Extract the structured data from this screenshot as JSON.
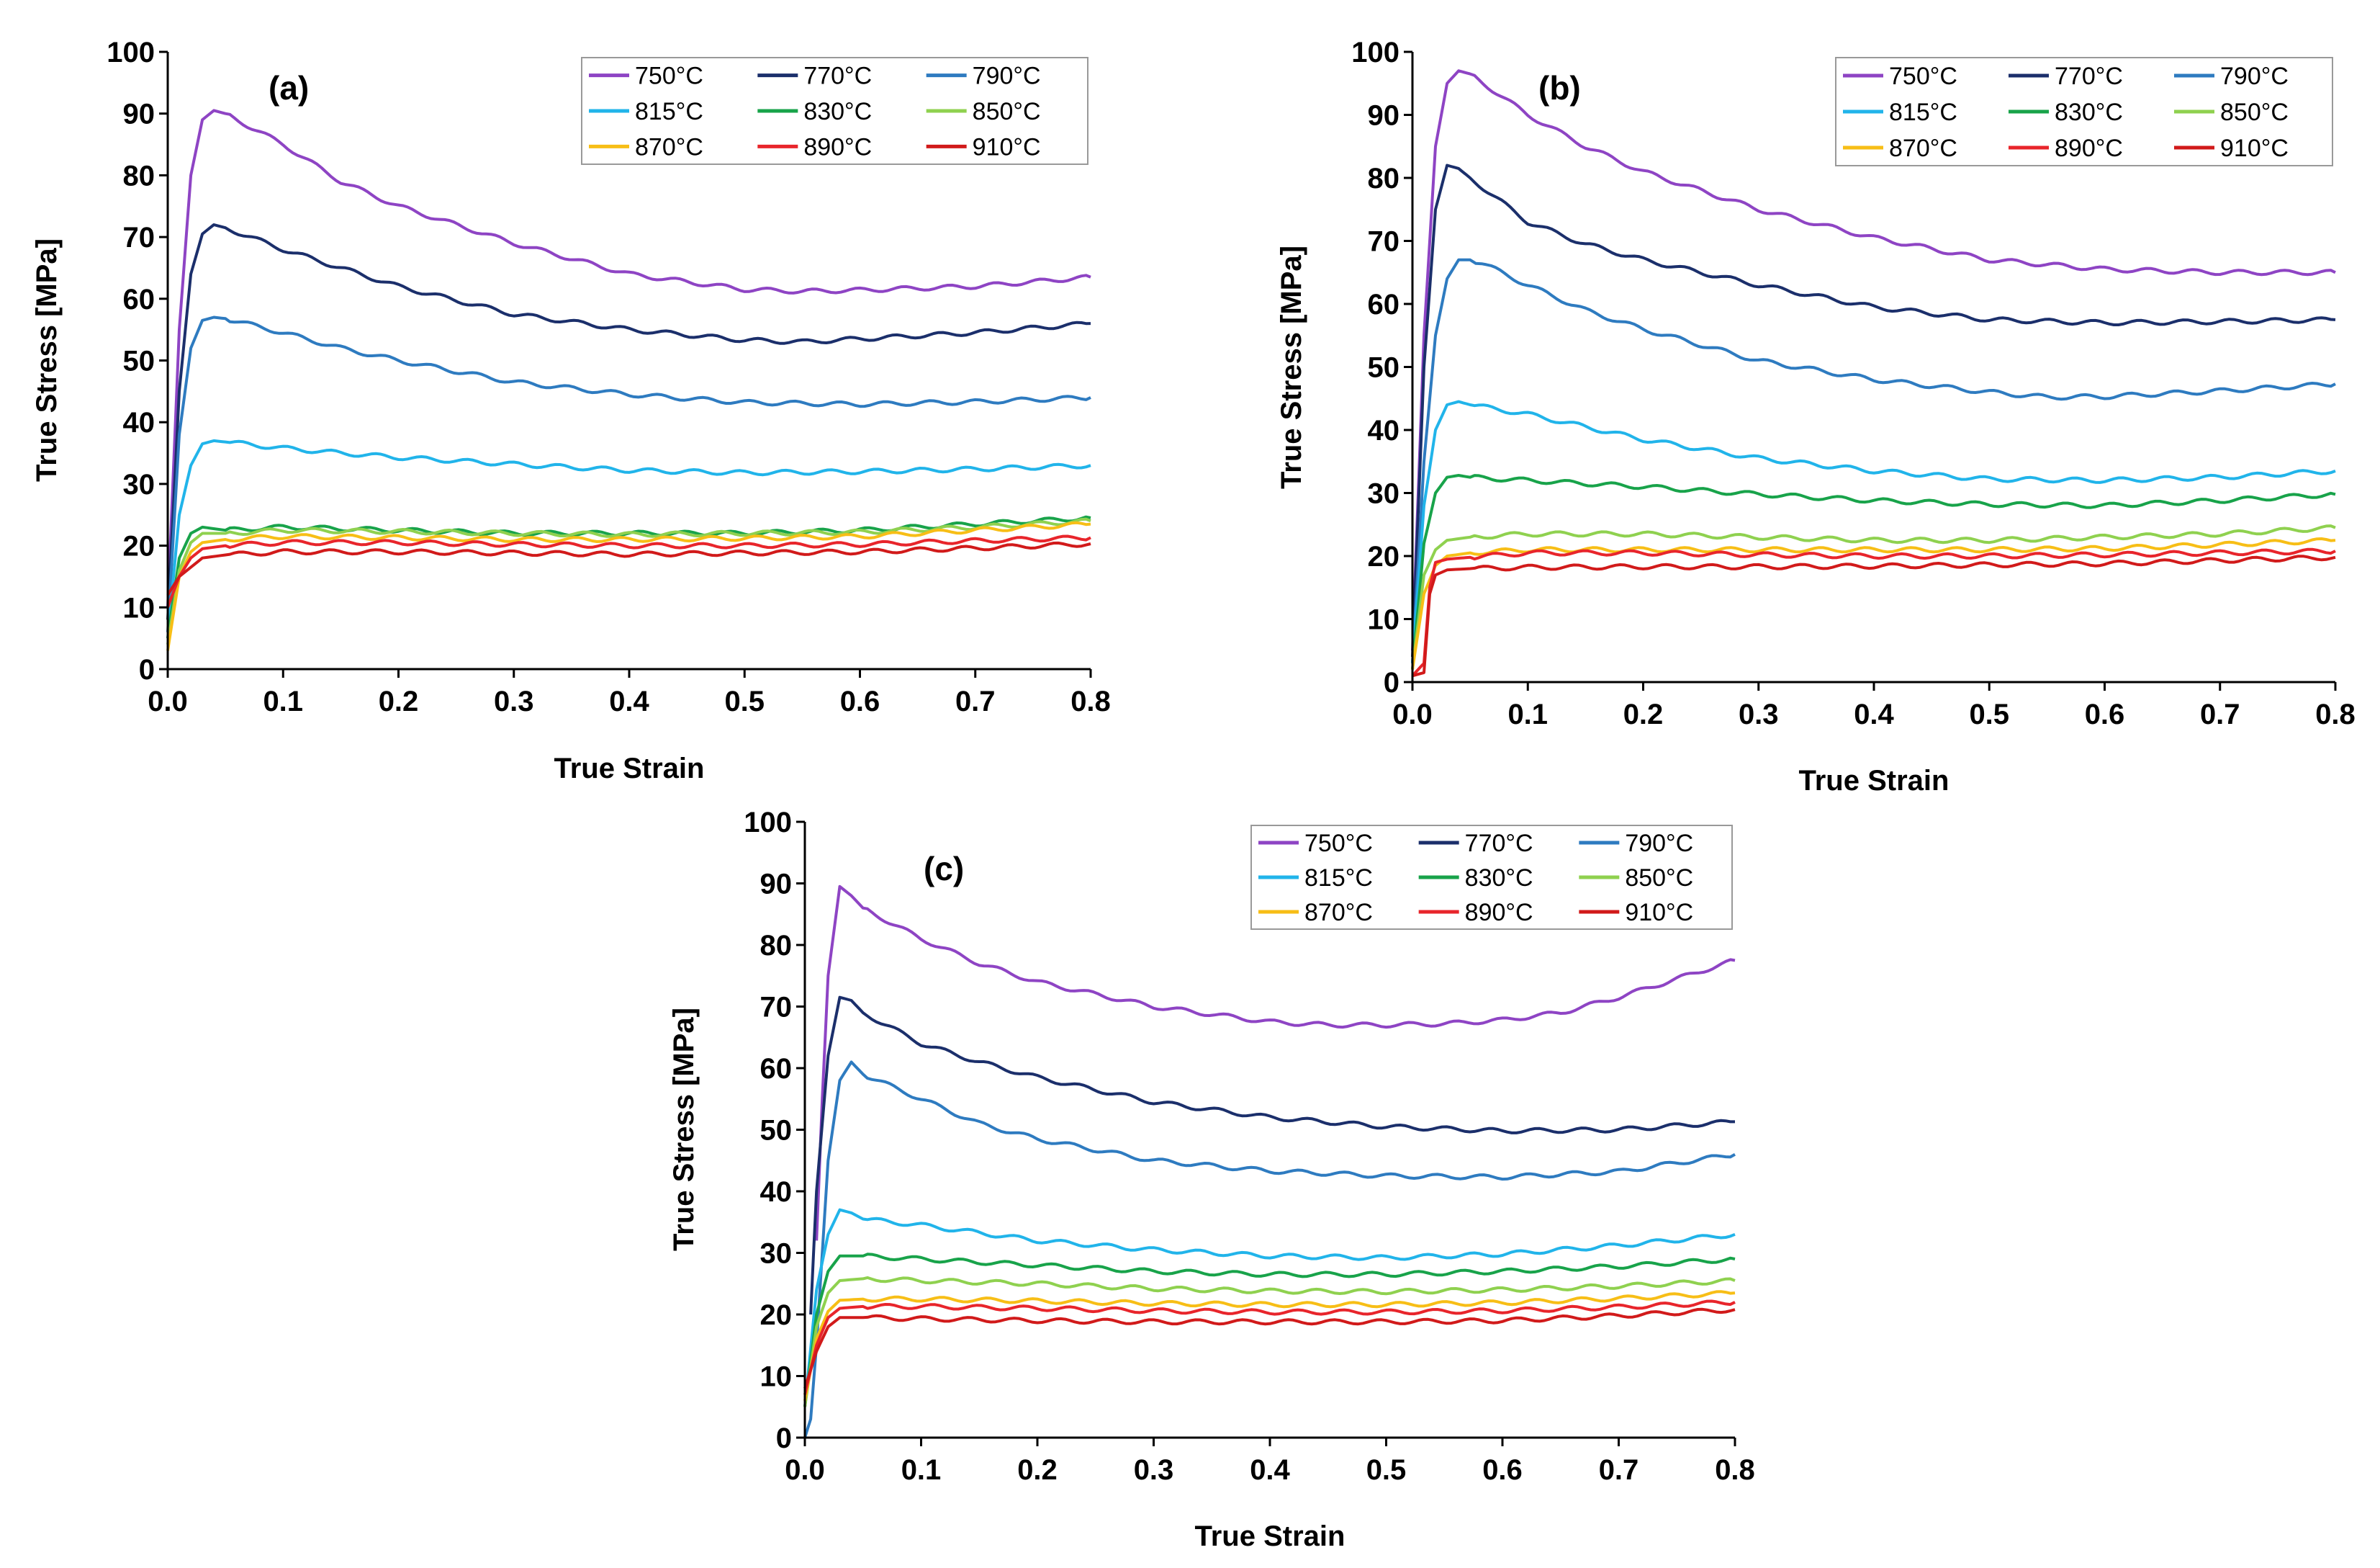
{
  "figure": {
    "colors": {
      "750": "#8e44c4",
      "770": "#1b2f6b",
      "790": "#2e7bc0",
      "815": "#21b4ea",
      "830": "#18a34a",
      "850": "#8fd14f",
      "870": "#f7be16",
      "890": "#e8252b",
      "910": "#d11a1a"
    }
  },
  "chart_data": [
    {
      "type": "line",
      "panel_label": "(a)",
      "xlabel": "True Strain",
      "ylabel": "True Stress [MPa]",
      "xlim": [
        0,
        0.8
      ],
      "ylim": [
        0,
        100
      ],
      "x_ticks": [
        "0.0",
        "0.1",
        "0.2",
        "0.3",
        "0.4",
        "0.5",
        "0.6",
        "0.7",
        "0.8"
      ],
      "y_ticks": [
        "0",
        "10",
        "20",
        "30",
        "40",
        "50",
        "60",
        "70",
        "80",
        "90",
        "100"
      ],
      "legend_position": "top-right",
      "grid": false,
      "series": [
        {
          "name": "750°C",
          "color_key": "750",
          "x": [
            0,
            0.01,
            0.02,
            0.03,
            0.04,
            0.05,
            0.1,
            0.15,
            0.2,
            0.3,
            0.4,
            0.5,
            0.55,
            0.6,
            0.7,
            0.8
          ],
          "y": [
            10,
            55,
            80,
            89,
            90.5,
            90,
            85,
            79,
            75,
            69,
            64,
            61.5,
            61.2,
            61.4,
            62,
            63.5
          ]
        },
        {
          "name": "770°C",
          "color_key": "770",
          "x": [
            0,
            0.01,
            0.02,
            0.03,
            0.04,
            0.05,
            0.1,
            0.15,
            0.2,
            0.3,
            0.4,
            0.5,
            0.55,
            0.6,
            0.7,
            0.8
          ],
          "y": [
            8,
            45,
            64,
            70.5,
            72,
            71.5,
            68,
            65,
            62,
            57.5,
            55,
            53.3,
            53,
            53.5,
            54.5,
            56
          ]
        },
        {
          "name": "790°C",
          "color_key": "790",
          "x": [
            0,
            0.01,
            0.02,
            0.03,
            0.04,
            0.05,
            0.1,
            0.15,
            0.2,
            0.3,
            0.4,
            0.5,
            0.6,
            0.7,
            0.8
          ],
          "y": [
            6,
            38,
            52,
            56.5,
            57,
            56.8,
            54.5,
            52,
            50,
            46.5,
            44.5,
            43.2,
            42.9,
            43.3,
            44
          ]
        },
        {
          "name": "815°C",
          "color_key": "815",
          "x": [
            0,
            0.01,
            0.02,
            0.03,
            0.04,
            0.05,
            0.1,
            0.15,
            0.2,
            0.3,
            0.4,
            0.5,
            0.6,
            0.7,
            0.8
          ],
          "y": [
            5,
            25,
            33,
            36.5,
            37,
            36.8,
            35.8,
            35,
            34.3,
            33.2,
            32.2,
            31.8,
            32,
            32.4,
            33
          ]
        },
        {
          "name": "830°C",
          "color_key": "830",
          "x": [
            0,
            0.01,
            0.02,
            0.03,
            0.05,
            0.1,
            0.2,
            0.3,
            0.4,
            0.5,
            0.6,
            0.7,
            0.8
          ],
          "y": [
            5,
            18,
            22,
            23,
            22.5,
            23,
            22.5,
            22,
            22,
            22,
            22.5,
            23.5,
            24.5
          ]
        },
        {
          "name": "850°C",
          "color_key": "850",
          "x": [
            0,
            0.01,
            0.02,
            0.03,
            0.05,
            0.1,
            0.2,
            0.3,
            0.4,
            0.5,
            0.6,
            0.7,
            0.8
          ],
          "y": [
            4,
            16,
            20.5,
            22,
            22,
            22.5,
            22.3,
            22,
            21.8,
            22,
            22.2,
            23,
            24
          ]
        },
        {
          "name": "870°C",
          "color_key": "870",
          "x": [
            0,
            0.01,
            0.02,
            0.03,
            0.05,
            0.1,
            0.2,
            0.3,
            0.4,
            0.5,
            0.6,
            0.7,
            0.8
          ],
          "y": [
            3,
            15,
            19,
            20.5,
            21,
            21.5,
            21.3,
            21,
            21,
            21.2,
            21.5,
            22.5,
            23.5
          ]
        },
        {
          "name": "890°C",
          "color_key": "890",
          "x": [
            0,
            0.01,
            0.02,
            0.03,
            0.05,
            0.1,
            0.2,
            0.3,
            0.4,
            0.5,
            0.6,
            0.7,
            0.8
          ],
          "y": [
            10,
            15,
            18,
            19.5,
            20,
            20.5,
            20.5,
            20.2,
            20,
            20,
            20.2,
            20.8,
            21.3
          ]
        },
        {
          "name": "910°C",
          "color_key": "910",
          "x": [
            0,
            0.01,
            0.02,
            0.03,
            0.05,
            0.1,
            0.2,
            0.3,
            0.4,
            0.5,
            0.6,
            0.7,
            0.8
          ],
          "y": [
            12,
            15,
            16.5,
            18,
            18.5,
            19,
            19,
            18.8,
            18.6,
            18.8,
            19,
            19.6,
            20.3
          ]
        }
      ]
    },
    {
      "type": "line",
      "panel_label": "(b)",
      "xlabel": "True Strain",
      "ylabel": "True Stress [MPa]",
      "xlim": [
        0,
        0.8
      ],
      "ylim": [
        0,
        100
      ],
      "x_ticks": [
        "0.0",
        "0.1",
        "0.2",
        "0.3",
        "0.4",
        "0.5",
        "0.6",
        "0.7",
        "0.8"
      ],
      "y_ticks": [
        "0",
        "10",
        "20",
        "30",
        "40",
        "50",
        "60",
        "70",
        "80",
        "90",
        "100"
      ],
      "legend_position": "top-right",
      "grid": false,
      "series": [
        {
          "name": "750°C",
          "color_key": "750",
          "x": [
            0,
            0.01,
            0.02,
            0.03,
            0.04,
            0.05,
            0.1,
            0.15,
            0.2,
            0.3,
            0.4,
            0.5,
            0.6,
            0.7,
            0.8
          ],
          "y": [
            5,
            55,
            85,
            95,
            97,
            96.5,
            90,
            85,
            81,
            75,
            70.5,
            67,
            65.5,
            65,
            65
          ]
        },
        {
          "name": "770°C",
          "color_key": "770",
          "x": [
            0,
            0.01,
            0.02,
            0.03,
            0.04,
            0.05,
            0.1,
            0.15,
            0.2,
            0.3,
            0.4,
            0.5,
            0.6,
            0.7,
            0.8
          ],
          "y": [
            4,
            50,
            75,
            82,
            81.5,
            80,
            73,
            69.5,
            67,
            63,
            59.5,
            57.5,
            57,
            57.2,
            57.5
          ]
        },
        {
          "name": "790°C",
          "color_key": "790",
          "x": [
            0,
            0.01,
            0.02,
            0.03,
            0.04,
            0.05,
            0.06,
            0.1,
            0.15,
            0.2,
            0.3,
            0.4,
            0.5,
            0.55,
            0.6,
            0.7,
            0.8
          ],
          "y": [
            3,
            35,
            55,
            64,
            67,
            67,
            66.5,
            63,
            59,
            56,
            51,
            48,
            46,
            45.2,
            45.3,
            46.2,
            47.3
          ]
        },
        {
          "name": "815°C",
          "color_key": "815",
          "x": [
            0,
            0.01,
            0.02,
            0.03,
            0.04,
            0.05,
            0.1,
            0.2,
            0.3,
            0.4,
            0.5,
            0.6,
            0.7,
            0.8
          ],
          "y": [
            3,
            28,
            40,
            44,
            44.5,
            44,
            42.5,
            38.5,
            35.5,
            33.5,
            32.2,
            32,
            32.5,
            33.5
          ]
        },
        {
          "name": "830°C",
          "color_key": "830",
          "x": [
            0,
            0.01,
            0.02,
            0.03,
            0.04,
            0.05,
            0.1,
            0.2,
            0.3,
            0.4,
            0.5,
            0.6,
            0.7,
            0.8
          ],
          "y": [
            2,
            22,
            30,
            32.5,
            32.8,
            32.5,
            32,
            31,
            29.8,
            28.8,
            28.2,
            28,
            28.8,
            29.8
          ]
        },
        {
          "name": "850°C",
          "color_key": "850",
          "x": [
            0,
            0.01,
            0.02,
            0.03,
            0.05,
            0.1,
            0.2,
            0.3,
            0.4,
            0.5,
            0.6,
            0.7,
            0.8
          ],
          "y": [
            2,
            17,
            21,
            22.5,
            23,
            23.5,
            23.5,
            23,
            22.5,
            22.5,
            23,
            23.5,
            24.5
          ]
        },
        {
          "name": "870°C",
          "color_key": "870",
          "x": [
            0,
            0.01,
            0.02,
            0.03,
            0.05,
            0.1,
            0.2,
            0.3,
            0.4,
            0.5,
            0.6,
            0.7,
            0.8
          ],
          "y": [
            2,
            14,
            18.5,
            20,
            20.5,
            21,
            21,
            21,
            21,
            21,
            21.2,
            21.8,
            22.5
          ]
        },
        {
          "name": "890°C",
          "color_key": "890",
          "x": [
            0,
            0.005,
            0.01,
            0.015,
            0.02,
            0.03,
            0.05,
            0.1,
            0.2,
            0.3,
            0.4,
            0.5,
            0.6,
            0.7,
            0.8
          ],
          "y": [
            1,
            2,
            3,
            15,
            19,
            19.5,
            19.8,
            20.5,
            20.5,
            20.2,
            20,
            20,
            20.2,
            20.5,
            20.8
          ]
        },
        {
          "name": "910°C",
          "color_key": "910",
          "x": [
            0,
            0.01,
            0.015,
            0.02,
            0.03,
            0.05,
            0.1,
            0.2,
            0.3,
            0.4,
            0.5,
            0.6,
            0.7,
            0.8
          ],
          "y": [
            1,
            1.5,
            14,
            17,
            17.8,
            18,
            18.2,
            18.3,
            18.3,
            18.4,
            18.6,
            18.8,
            19.3,
            19.8
          ]
        }
      ]
    },
    {
      "type": "line",
      "panel_label": "(c)",
      "xlabel": "True Strain",
      "ylabel": "True Stress [MPa]",
      "xlim": [
        0,
        0.8
      ],
      "ylim": [
        0,
        100
      ],
      "x_ticks": [
        "0.0",
        "0.1",
        "0.2",
        "0.3",
        "0.4",
        "0.5",
        "0.6",
        "0.7",
        "0.8"
      ],
      "y_ticks": [
        "0",
        "10",
        "20",
        "30",
        "40",
        "50",
        "60",
        "70",
        "80",
        "90",
        "100"
      ],
      "legend_position": "top-right",
      "grid": false,
      "series": [
        {
          "name": "750°C",
          "color_key": "750",
          "x": [
            0.01,
            0.015,
            0.02,
            0.03,
            0.04,
            0.05,
            0.08,
            0.1,
            0.15,
            0.2,
            0.3,
            0.4,
            0.45,
            0.5,
            0.55,
            0.6,
            0.65,
            0.7,
            0.75,
            0.8
          ],
          "y": [
            32,
            55,
            75,
            89.5,
            88,
            86,
            83,
            81,
            77,
            74,
            70,
            67.5,
            67,
            67,
            67.2,
            67.8,
            69,
            71.5,
            74.5,
            77.5
          ]
        },
        {
          "name": "770°C",
          "color_key": "770",
          "x": [
            0.005,
            0.01,
            0.02,
            0.03,
            0.04,
            0.05,
            0.1,
            0.15,
            0.2,
            0.3,
            0.4,
            0.5,
            0.6,
            0.7,
            0.8
          ],
          "y": [
            20,
            40,
            62,
            71.5,
            71,
            69,
            64,
            61,
            58.5,
            54.5,
            52,
            50.5,
            49.8,
            50,
            51.3
          ]
        },
        {
          "name": "790°C",
          "color_key": "790",
          "x": [
            0,
            0.005,
            0.01,
            0.02,
            0.03,
            0.04,
            0.05,
            0.1,
            0.15,
            0.2,
            0.3,
            0.4,
            0.5,
            0.6,
            0.7,
            0.8
          ],
          "y": [
            0,
            3,
            15,
            45,
            58,
            61,
            59,
            55,
            51,
            48.5,
            45,
            43.3,
            42.5,
            42.3,
            43.2,
            46
          ]
        },
        {
          "name": "815°C",
          "color_key": "815",
          "x": [
            0,
            0.01,
            0.02,
            0.03,
            0.04,
            0.05,
            0.1,
            0.2,
            0.3,
            0.4,
            0.5,
            0.6,
            0.7,
            0.8
          ],
          "y": [
            5,
            24,
            33,
            37,
            36.5,
            35.5,
            34.5,
            32,
            30.5,
            29.5,
            29.2,
            29.8,
            31.2,
            33
          ]
        },
        {
          "name": "830°C",
          "color_key": "830",
          "x": [
            0,
            0.01,
            0.02,
            0.03,
            0.05,
            0.1,
            0.2,
            0.3,
            0.4,
            0.5,
            0.6,
            0.7,
            0.8
          ],
          "y": [
            5,
            20,
            27,
            29.5,
            29.5,
            29,
            28,
            27,
            26.5,
            26.5,
            27,
            27.8,
            29
          ]
        },
        {
          "name": "850°C",
          "color_key": "850",
          "x": [
            0,
            0.01,
            0.02,
            0.03,
            0.05,
            0.1,
            0.2,
            0.3,
            0.4,
            0.5,
            0.6,
            0.7,
            0.8
          ],
          "y": [
            5,
            18,
            23.5,
            25.5,
            25.8,
            25.5,
            25,
            24.2,
            23.8,
            23.7,
            24,
            24.6,
            25.5
          ]
        },
        {
          "name": "870°C",
          "color_key": "870",
          "x": [
            0,
            0.01,
            0.02,
            0.03,
            0.05,
            0.1,
            0.2,
            0.3,
            0.4,
            0.5,
            0.6,
            0.7,
            0.8
          ],
          "y": [
            6,
            16,
            20.5,
            22.3,
            22.5,
            22.5,
            22.2,
            21.8,
            21.6,
            21.6,
            21.9,
            22.6,
            23.5
          ]
        },
        {
          "name": "890°C",
          "color_key": "890",
          "x": [
            0,
            0.01,
            0.02,
            0.03,
            0.05,
            0.1,
            0.2,
            0.3,
            0.4,
            0.5,
            0.6,
            0.7,
            0.8
          ],
          "y": [
            7,
            15,
            19.5,
            21,
            21.3,
            21.3,
            21,
            20.6,
            20.4,
            20.4,
            20.6,
            21.2,
            22
          ]
        },
        {
          "name": "910°C",
          "color_key": "910",
          "x": [
            0,
            0.01,
            0.02,
            0.03,
            0.05,
            0.1,
            0.2,
            0.3,
            0.4,
            0.5,
            0.6,
            0.7,
            0.8
          ],
          "y": [
            8,
            14,
            18,
            19.5,
            19.5,
            19.3,
            19,
            18.8,
            18.8,
            18.8,
            19,
            19.8,
            20.8
          ]
        }
      ]
    }
  ]
}
